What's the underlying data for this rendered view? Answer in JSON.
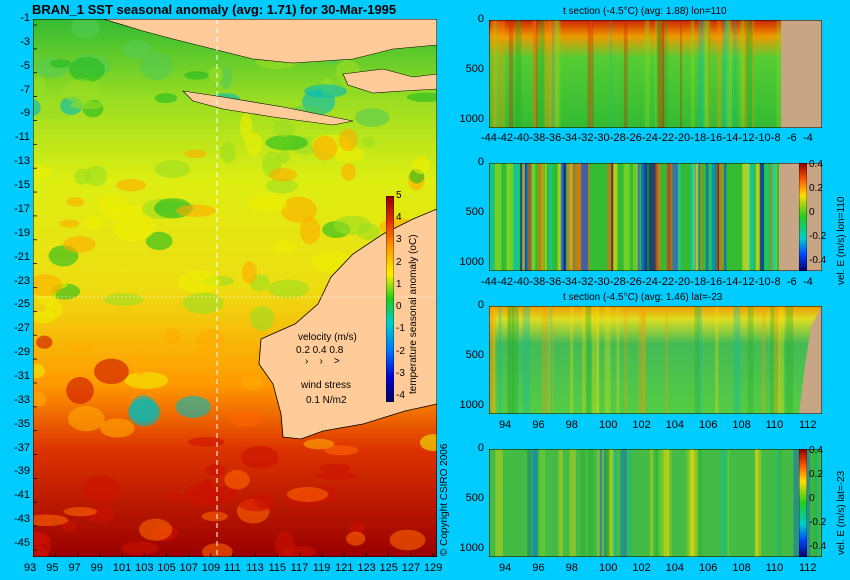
{
  "chart_data": [
    {
      "type": "heatmap",
      "title": "BRAN_1  SST seasonal anomaly (avg: 1.71) for 30-Mar-1995",
      "x_ticks": [
        "93",
        "95",
        "97",
        "99",
        "101",
        "103",
        "105",
        "107",
        "109",
        "111",
        "113",
        "115",
        "117",
        "119",
        "121",
        "123",
        "125",
        "127",
        "129"
      ],
      "y_ticks": [
        "-1",
        "-3",
        "-5",
        "-7",
        "-9",
        "-11",
        "-13",
        "-15",
        "-17",
        "-19",
        "-21",
        "-23",
        "-25",
        "-27",
        "-29",
        "-31",
        "-33",
        "-35",
        "-37",
        "-39",
        "-41",
        "-43",
        "-45"
      ],
      "colorbar": {
        "label": "temperature seasonal anomaly (oC)",
        "ticks": [
          "5",
          "4",
          "3",
          "2",
          "1",
          "0",
          "-1",
          "-2",
          "-3",
          "-4"
        ]
      },
      "velocity_legend": {
        "title": "velocity (m/s)",
        "values": "0.2 0.4 0.8",
        "wind": "wind stress",
        "wind_value": "0.1 N/m2"
      },
      "section_lines": {
        "lon": 110,
        "lat": -23
      },
      "copyright": "© Copyright CSIRO 2006"
    },
    {
      "type": "heatmap",
      "title": "t section (-4.5°C) (avg: 1.88) lon=110",
      "x_ticks": [
        "-44",
        "-42",
        "-40",
        "-38",
        "-36",
        "-34",
        "-32",
        "-30",
        "-28",
        "-26",
        "-24",
        "-22",
        "-20",
        "-18",
        "-16",
        "-14",
        "-12",
        "-10",
        "-8",
        "-6",
        "-4"
      ],
      "y_ticks": [
        "0",
        "500",
        "1000"
      ]
    },
    {
      "type": "heatmap",
      "title": "",
      "x_ticks": [
        "-44",
        "-42",
        "-40",
        "-38",
        "-36",
        "-34",
        "-32",
        "-30",
        "-28",
        "-26",
        "-24",
        "-22",
        "-20",
        "-18",
        "-16",
        "-14",
        "-12",
        "-10",
        "-8",
        "-6",
        "-4"
      ],
      "y_ticks": [
        "0",
        "500",
        "1000"
      ],
      "colorbar": {
        "label": "vel. E (m/s) lon=110",
        "ticks": [
          "0.4",
          "0.2",
          "0",
          "-0.2",
          "-0.4"
        ]
      }
    },
    {
      "type": "heatmap",
      "title": "t section (-4.5°C) (avg: 1.46) lat=-23",
      "x_ticks": [
        "94",
        "96",
        "98",
        "100",
        "102",
        "104",
        "106",
        "108",
        "110",
        "112"
      ],
      "y_ticks": [
        "0",
        "500",
        "1000"
      ]
    },
    {
      "type": "heatmap",
      "title": "",
      "x_ticks": [
        "94",
        "96",
        "98",
        "100",
        "102",
        "104",
        "106",
        "108",
        "110",
        "112"
      ],
      "y_ticks": [
        "0",
        "500",
        "1000"
      ],
      "colorbar": {
        "label": "vel. E (m/s) lat=-23",
        "ticks": [
          "0.4",
          "0.2",
          "0",
          "-0.2",
          "-0.4"
        ]
      }
    }
  ]
}
